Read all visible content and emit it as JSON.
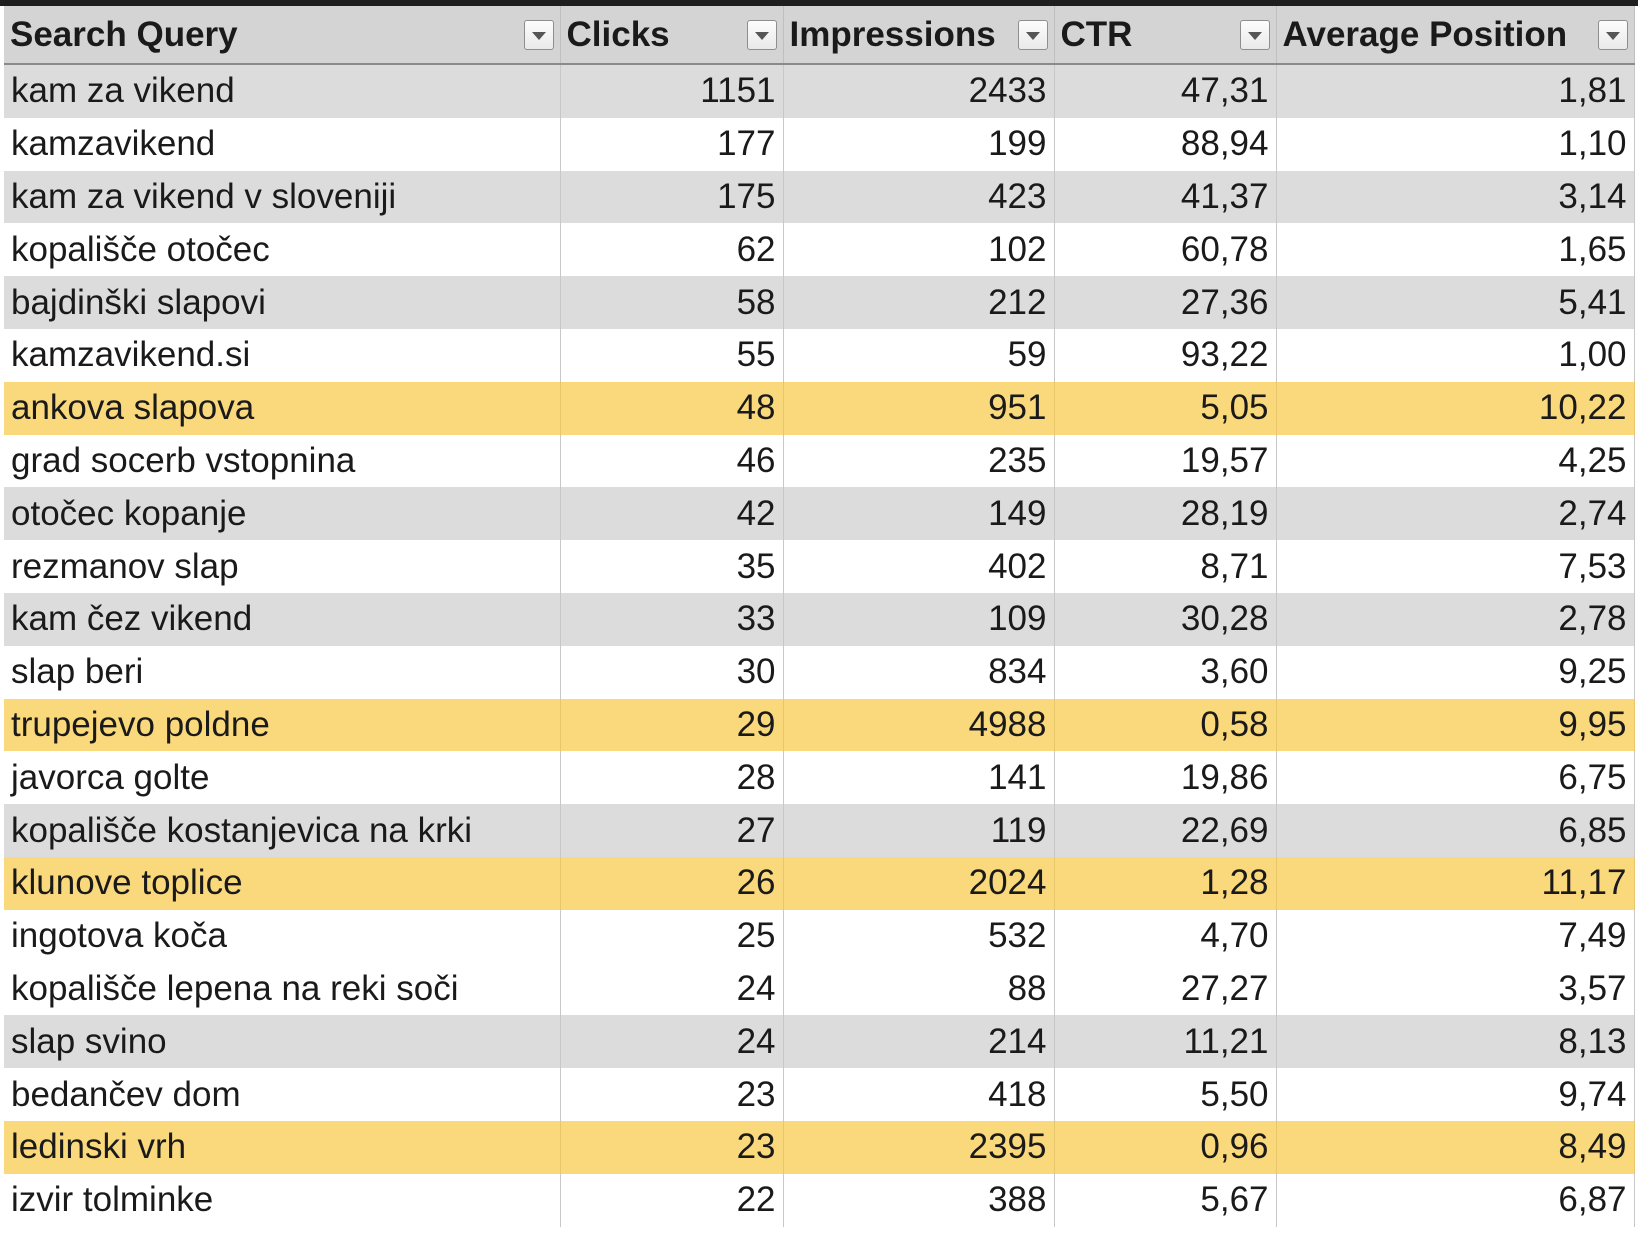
{
  "sheet": {
    "columns": [
      {
        "label": "Search Query",
        "align": "left"
      },
      {
        "label": "Clicks",
        "align": "right"
      },
      {
        "label": "Impressions",
        "align": "right"
      },
      {
        "label": "CTR",
        "align": "right"
      },
      {
        "label": "Average Position",
        "align": "right"
      }
    ],
    "row_colors": {
      "gray": "#dcdcdc",
      "white": "#ffffff",
      "highlight": "#fad87c"
    },
    "rows": [
      {
        "query": "kam za vikend",
        "clicks": "1151",
        "impressions": "2433",
        "ctr": "47,31",
        "avg_position": "1,81",
        "style": "gray"
      },
      {
        "query": "kamzavikend",
        "clicks": "177",
        "impressions": "199",
        "ctr": "88,94",
        "avg_position": "1,10",
        "style": "white"
      },
      {
        "query": "kam za vikend v sloveniji",
        "clicks": "175",
        "impressions": "423",
        "ctr": "41,37",
        "avg_position": "3,14",
        "style": "gray"
      },
      {
        "query": "kopališče otočec",
        "clicks": "62",
        "impressions": "102",
        "ctr": "60,78",
        "avg_position": "1,65",
        "style": "white"
      },
      {
        "query": "bajdinški slapovi",
        "clicks": "58",
        "impressions": "212",
        "ctr": "27,36",
        "avg_position": "5,41",
        "style": "gray"
      },
      {
        "query": "kamzavikend.si",
        "clicks": "55",
        "impressions": "59",
        "ctr": "93,22",
        "avg_position": "1,00",
        "style": "white"
      },
      {
        "query": "ankova slapova",
        "clicks": "48",
        "impressions": "951",
        "ctr": "5,05",
        "avg_position": "10,22",
        "style": "highlight"
      },
      {
        "query": "grad socerb vstopnina",
        "clicks": "46",
        "impressions": "235",
        "ctr": "19,57",
        "avg_position": "4,25",
        "style": "white"
      },
      {
        "query": "otočec kopanje",
        "clicks": "42",
        "impressions": "149",
        "ctr": "28,19",
        "avg_position": "2,74",
        "style": "gray"
      },
      {
        "query": "rezmanov slap",
        "clicks": "35",
        "impressions": "402",
        "ctr": "8,71",
        "avg_position": "7,53",
        "style": "white"
      },
      {
        "query": "kam čez vikend",
        "clicks": "33",
        "impressions": "109",
        "ctr": "30,28",
        "avg_position": "2,78",
        "style": "gray"
      },
      {
        "query": "slap beri",
        "clicks": "30",
        "impressions": "834",
        "ctr": "3,60",
        "avg_position": "9,25",
        "style": "white"
      },
      {
        "query": "trupejevo poldne",
        "clicks": "29",
        "impressions": "4988",
        "ctr": "0,58",
        "avg_position": "9,95",
        "style": "highlight"
      },
      {
        "query": "javorca golte",
        "clicks": "28",
        "impressions": "141",
        "ctr": "19,86",
        "avg_position": "6,75",
        "style": "white"
      },
      {
        "query": "kopališče kostanjevica na krki",
        "clicks": "27",
        "impressions": "119",
        "ctr": "22,69",
        "avg_position": "6,85",
        "style": "gray"
      },
      {
        "query": "klunove toplice",
        "clicks": "26",
        "impressions": "2024",
        "ctr": "1,28",
        "avg_position": "11,17",
        "style": "highlight"
      },
      {
        "query": "ingotova koča",
        "clicks": "25",
        "impressions": "532",
        "ctr": "4,70",
        "avg_position": "7,49",
        "style": "white"
      },
      {
        "query": "kopališče lepena na reki soči",
        "clicks": "24",
        "impressions": "88",
        "ctr": "27,27",
        "avg_position": "3,57",
        "style": "white"
      },
      {
        "query": "slap svino",
        "clicks": "24",
        "impressions": "214",
        "ctr": "11,21",
        "avg_position": "8,13",
        "style": "gray"
      },
      {
        "query": "bedančev dom",
        "clicks": "23",
        "impressions": "418",
        "ctr": "5,50",
        "avg_position": "9,74",
        "style": "white"
      },
      {
        "query": "ledinski vrh",
        "clicks": "23",
        "impressions": "2395",
        "ctr": "0,96",
        "avg_position": "8,49",
        "style": "highlight"
      },
      {
        "query": "izvir tolminke",
        "clicks": "22",
        "impressions": "388",
        "ctr": "5,67",
        "avg_position": "6,87",
        "style": "white"
      }
    ]
  }
}
